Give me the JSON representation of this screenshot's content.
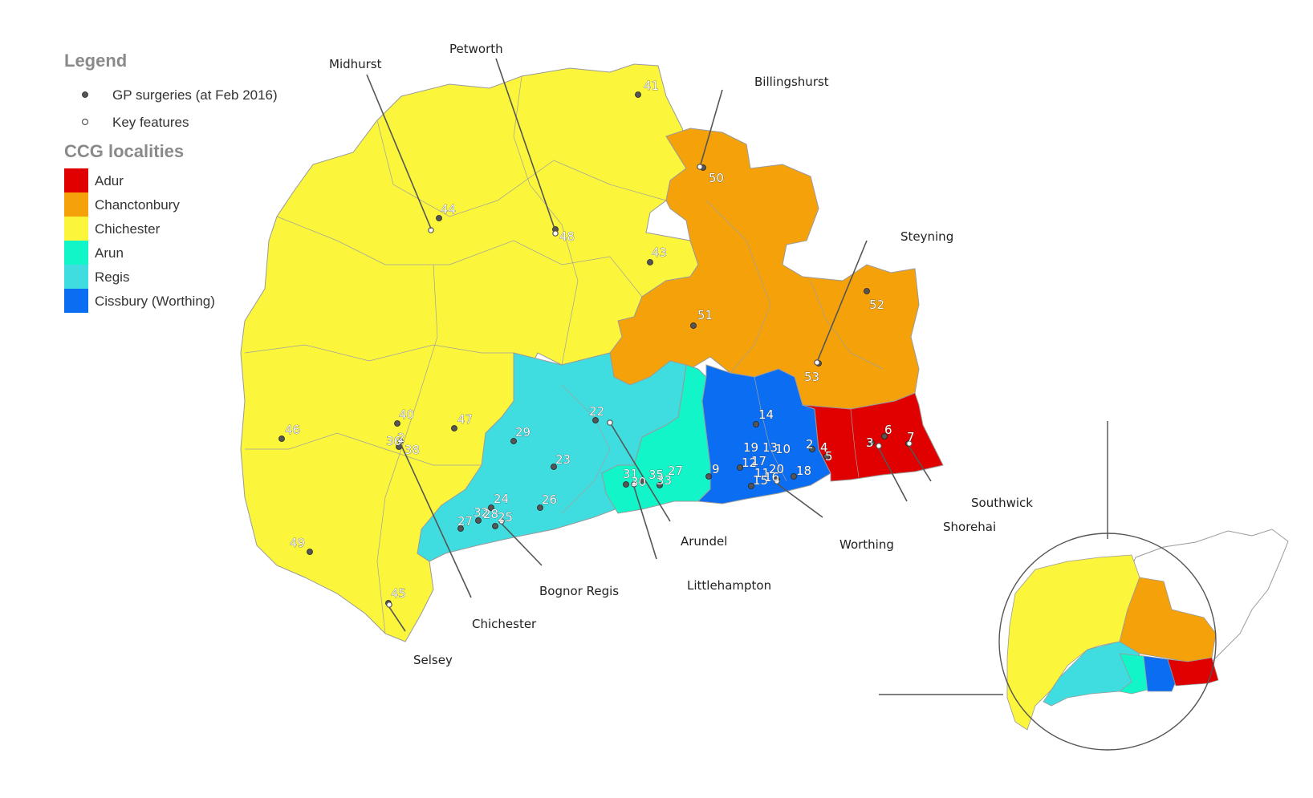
{
  "legend": {
    "title": "Legend",
    "gp_label": "GP surgeries (at Feb 2016)",
    "key_label": "Key features",
    "ccg_title": "CCG localities",
    "localities": [
      {
        "name": "Adur",
        "color": "#e00000"
      },
      {
        "name": "Chanctonbury",
        "color": "#f5a20a"
      },
      {
        "name": "Chichester",
        "color": "#fbf53c"
      },
      {
        "name": "Arun",
        "color": "#12f5c8"
      },
      {
        "name": "Regis",
        "color": "#3fdde0"
      },
      {
        "name": "Cissbury (Worthing)",
        "color": "#0a6df2"
      }
    ]
  },
  "places": [
    "Midhurst",
    "Petworth",
    "Billingshurst",
    "Steyning",
    "Southwick",
    "Shorehai",
    "Worthing",
    "Arundel",
    "Littlehampton",
    "Bognor Regis",
    "Chichester",
    "Selsey"
  ],
  "surgery_numbers": [
    "41",
    "50",
    "44",
    "48",
    "43",
    "51",
    "52",
    "53",
    "40",
    "47",
    "46",
    "36",
    "2",
    "38",
    "49",
    "45",
    "29",
    "22",
    "23",
    "24",
    "32",
    "28",
    "25",
    "27",
    "26",
    "31",
    "30",
    "35",
    "33",
    "27",
    "14",
    "19",
    "13",
    "10",
    "2",
    "4",
    "5",
    "3",
    "6",
    "7",
    "9",
    "12",
    "17",
    "11",
    "20",
    "18",
    "15",
    "16"
  ]
}
